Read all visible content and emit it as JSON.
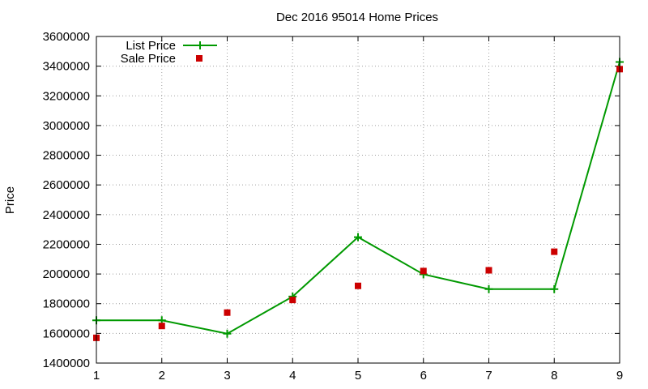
{
  "chart_data": {
    "type": "line",
    "title": "Dec 2016 95014 Home Prices",
    "xlabel": "",
    "ylabel": "Price",
    "xlim": [
      1,
      9
    ],
    "ylim": [
      1400000,
      3600000
    ],
    "x_ticks": [
      "1",
      "2",
      "3",
      "4",
      "5",
      "6",
      "7",
      "8",
      "9"
    ],
    "y_ticks": [
      "1400000",
      "1600000",
      "1800000",
      "2000000",
      "2200000",
      "2400000",
      "2600000",
      "2800000",
      "3000000",
      "3200000",
      "3400000",
      "3600000"
    ],
    "grid": true,
    "legend_position": "top-left",
    "series": [
      {
        "name": "List Price",
        "style": "line-with-plus-markers",
        "color": "#009900",
        "x": [
          1,
          2,
          3,
          4,
          5,
          6,
          7,
          8,
          9
        ],
        "values": [
          1688000,
          1688000,
          1598000,
          1848000,
          2248000,
          1998000,
          1898000,
          1898000,
          3428000
        ]
      },
      {
        "name": "Sale Price",
        "style": "square-markers",
        "color": "#cc0000",
        "x": [
          1,
          2,
          3,
          4,
          5,
          6,
          7,
          8,
          9
        ],
        "values": [
          1570000,
          1650000,
          1740000,
          1825000,
          1920000,
          2020000,
          2025000,
          2150000,
          3380000
        ]
      }
    ]
  }
}
